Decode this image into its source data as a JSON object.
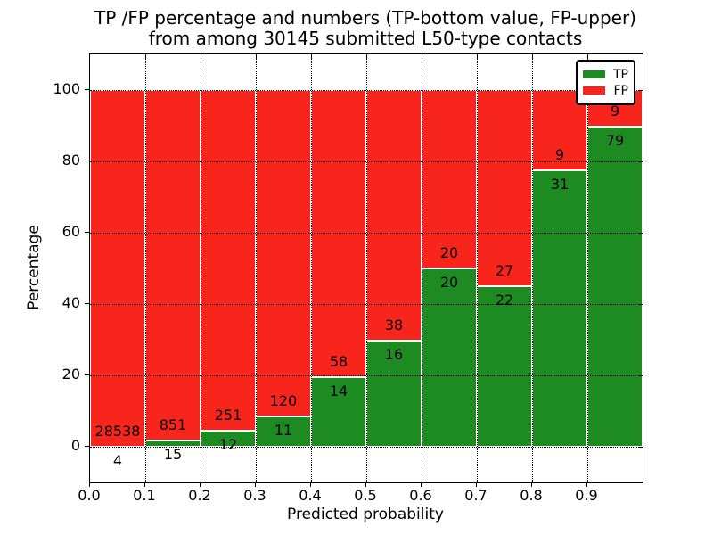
{
  "title": {
    "line1": "TP /FP percentage and numbers (TP-bottom value, FP-upper)",
    "line2": "from among 30145 submitted L50-type contacts"
  },
  "axes": {
    "xlabel": "Predicted probability",
    "ylabel": "Percentage",
    "xtick_labels": [
      "0.0",
      "0.1",
      "0.2",
      "0.3",
      "0.4",
      "0.5",
      "0.6",
      "0.7",
      "0.8",
      "0.9"
    ],
    "ytick_labels": [
      "0",
      "20",
      "40",
      "60",
      "80",
      "100"
    ],
    "ytick_values": [
      0,
      20,
      40,
      60,
      80,
      100
    ]
  },
  "legend": {
    "position": "upper-right",
    "items": [
      {
        "label": "TP",
        "color": "#1e8b22"
      },
      {
        "label": "FP",
        "color": "#f8251d"
      }
    ]
  },
  "colors": {
    "tp_green": "#1e8b22",
    "fp_red": "#f8251d",
    "grid": "#000000",
    "bar_edge": "#ffffff"
  },
  "chart_data": {
    "type": "bar",
    "stacked": true,
    "normalized": "each bar scaled to 100%",
    "title": "TP /FP percentage and numbers (TP-bottom value, FP-upper) from among 30145 submitted L50-type contacts",
    "xlabel": "Predicted probability",
    "ylabel": "Percentage",
    "total_contacts": 30145,
    "bin_edges": [
      0.0,
      0.1,
      0.2,
      0.3,
      0.4,
      0.5,
      0.6,
      0.7,
      0.8,
      0.9,
      1.0
    ],
    "categories": [
      "0.0-0.1",
      "0.1-0.2",
      "0.2-0.3",
      "0.3-0.4",
      "0.4-0.5",
      "0.5-0.6",
      "0.6-0.7",
      "0.7-0.8",
      "0.8-0.9",
      "0.9-1.0"
    ],
    "series": [
      {
        "name": "TP",
        "color": "#1e8b22",
        "counts": [
          4,
          15,
          12,
          11,
          14,
          16,
          20,
          22,
          31,
          79
        ]
      },
      {
        "name": "FP",
        "color": "#f8251d",
        "counts": [
          28538,
          851,
          251,
          120,
          58,
          38,
          20,
          27,
          9,
          9
        ]
      }
    ],
    "tp_percent": [
      0.01,
      1.73,
      4.56,
      8.4,
      19.44,
      29.63,
      50.0,
      44.9,
      77.5,
      89.77
    ],
    "xlim": [
      0.0,
      1.0
    ],
    "ylim": [
      -10,
      110
    ],
    "grid": "dotted both axes",
    "legend_position": "upper-right"
  }
}
